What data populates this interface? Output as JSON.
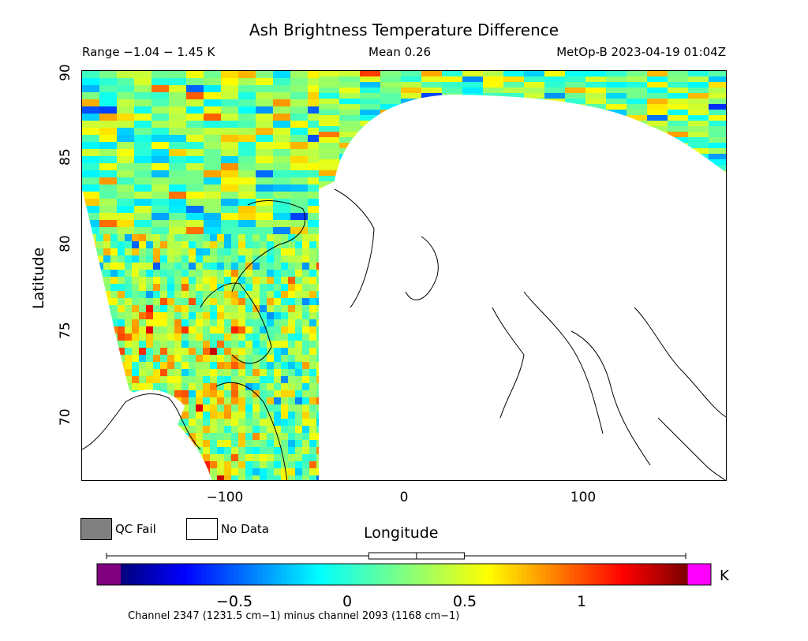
{
  "header": {
    "title": "Ash Brightness Temperature Difference",
    "range": "Range −1.04 − 1.45 K",
    "mean": "Mean 0.26",
    "satellite_time": "MetOp-B 2023-04-19 01:04Z"
  },
  "axes": {
    "xlabel": "Longitude",
    "ylabel": "Latitude",
    "x_ticks": [
      "−100",
      "0",
      "100"
    ],
    "y_ticks": [
      "70",
      "75",
      "80",
      "85",
      "90"
    ],
    "xlim": [
      -180,
      180
    ],
    "ylim": [
      66.3,
      90
    ]
  },
  "legend": {
    "qc_fail": "QC Fail",
    "no_data": "No Data",
    "qc_fail_color": "#808080",
    "no_data_color": "#ffffff"
  },
  "colorbar": {
    "unit": "K",
    "min": -1.04,
    "max": 1.45,
    "ticks": [
      "−0.5",
      "0",
      "0.5",
      "1"
    ],
    "tick_values": [
      -0.5,
      0,
      0.5,
      1
    ],
    "under_color": "#800080",
    "over_color": "#ff00ff",
    "boxplot": {
      "min": -1.04,
      "q1": 0.05,
      "median": 0.26,
      "q3": 0.47,
      "max": 1.45
    }
  },
  "footnote": "Channel 2347 (1231.5 cm−1) minus channel 2093 (1168 cm−1)",
  "chart_data": {
    "type": "heatmap",
    "title": "Ash Brightness Temperature Difference",
    "xlabel": "Longitude",
    "ylabel": "Latitude",
    "xlim": [
      -180,
      180
    ],
    "ylim": [
      66.3,
      90
    ],
    "value_range": [
      -1.04,
      1.45
    ],
    "mean": 0.26,
    "unit": "K"
  }
}
